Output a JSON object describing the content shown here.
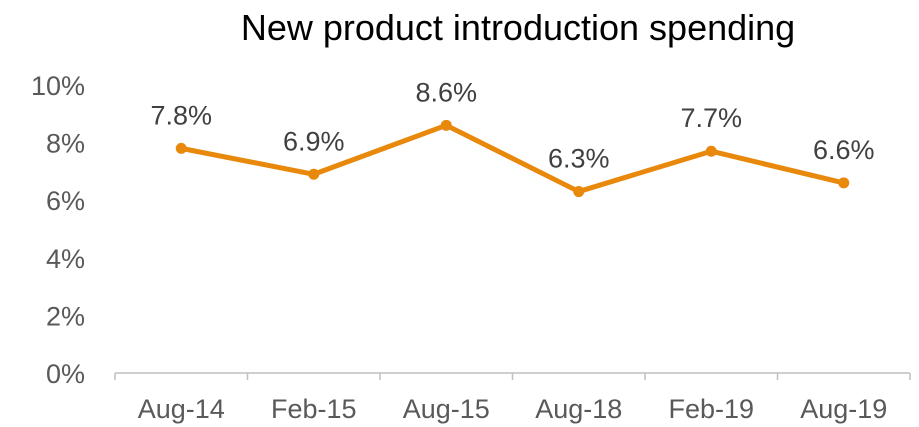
{
  "chart_data": {
    "type": "line",
    "title": "New product introduction spending",
    "xlabel": "",
    "ylabel": "",
    "categories": [
      "Aug-14",
      "Feb-15",
      "Aug-15",
      "Aug-18",
      "Feb-19",
      "Aug-19"
    ],
    "series": [
      {
        "values": [
          7.8,
          6.9,
          8.6,
          6.3,
          7.7,
          6.6
        ],
        "data_labels": [
          "7.8%",
          "6.9%",
          "8.6%",
          "6.3%",
          "7.7%",
          "6.6%"
        ],
        "color": "#E8890C"
      }
    ],
    "ylim": [
      0,
      10
    ],
    "yticks": [
      0,
      2,
      4,
      6,
      8,
      10
    ],
    "ytick_labels": [
      "0%",
      "2%",
      "4%",
      "6%",
      "8%",
      "10%"
    ],
    "grid": false,
    "legend": "none",
    "axis_color": "#BFBFBF"
  }
}
